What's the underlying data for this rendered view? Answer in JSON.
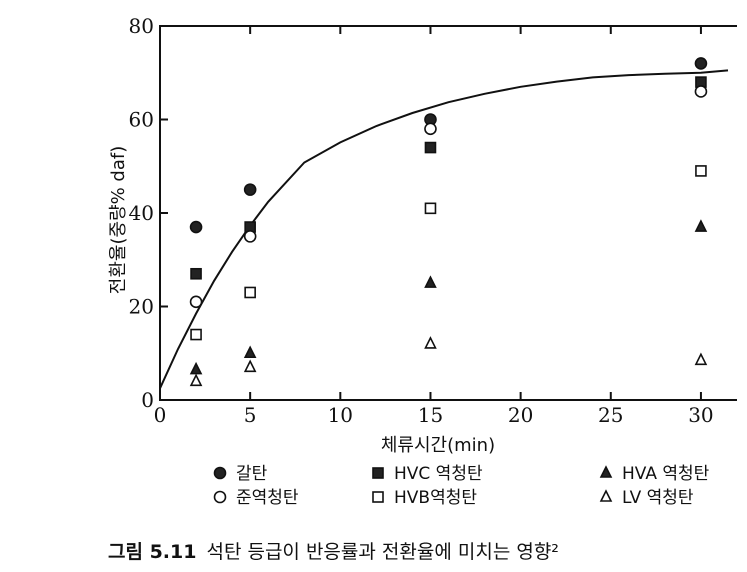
{
  "chart_data": {
    "type": "scatter",
    "xlabel": "체류시간(min)",
    "ylabel": "전환율(중량% daf)",
    "xlim": [
      0,
      32
    ],
    "ylim": [
      0,
      80
    ],
    "x_ticks": [
      "0",
      "5",
      "10",
      "15",
      "20",
      "25",
      "30"
    ],
    "y_ticks": [
      "0",
      "20",
      "40",
      "60",
      "80"
    ],
    "series": [
      {
        "name": "갈탄",
        "marker": "filled-circle",
        "x": [
          2,
          5,
          15,
          30
        ],
        "y": [
          37,
          45,
          60,
          72
        ]
      },
      {
        "name": "HVC 역청탄",
        "marker": "filled-square",
        "x": [
          2,
          5,
          15,
          30
        ],
        "y": [
          27,
          37,
          54,
          68
        ]
      },
      {
        "name": "HVA 역청탄",
        "marker": "filled-triangle",
        "x": [
          2,
          5,
          15,
          30
        ],
        "y": [
          6.5,
          10,
          25,
          37
        ]
      },
      {
        "name": "준역청탄",
        "marker": "open-circle",
        "x": [
          2,
          5,
          15,
          30
        ],
        "y": [
          21,
          35,
          58,
          66
        ]
      },
      {
        "name": "HVB역청탄",
        "marker": "open-square",
        "x": [
          2,
          5,
          15,
          30
        ],
        "y": [
          14,
          23,
          41,
          49
        ]
      },
      {
        "name": "LV 역청탄",
        "marker": "open-triangle",
        "x": [
          2,
          5,
          15,
          30
        ],
        "y": [
          4,
          7,
          12,
          8.5
        ]
      }
    ],
    "fit_curve": {
      "x": [
        0,
        1,
        2,
        3,
        4,
        5,
        6,
        8,
        10,
        12,
        14,
        16,
        18,
        20,
        22,
        24,
        26,
        28,
        30,
        31.5
      ],
      "y": [
        2.5,
        10.9,
        18.5,
        25.5,
        31.7,
        37.3,
        42.4,
        50.8,
        55.1,
        58.6,
        61.4,
        63.7,
        65.5,
        67.0,
        68.1,
        69.0,
        69.5,
        69.8,
        70.0,
        70.5
      ]
    }
  },
  "legend_items": [
    {
      "label": "갈탄",
      "symbol": "●"
    },
    {
      "label": "HVC 역청탄",
      "symbol": "■"
    },
    {
      "label": "HVA 역청탄",
      "symbol": "▲"
    },
    {
      "label": "준역청탄",
      "symbol": "○"
    },
    {
      "label": "HVB역청탄",
      "symbol": "□"
    },
    {
      "label": "LV 역청탄",
      "symbol": "△"
    }
  ],
  "caption": {
    "figure_no": "그림 5.11",
    "text": "석탄 등급이 반응률과 전환율에 미치는 영향²"
  }
}
